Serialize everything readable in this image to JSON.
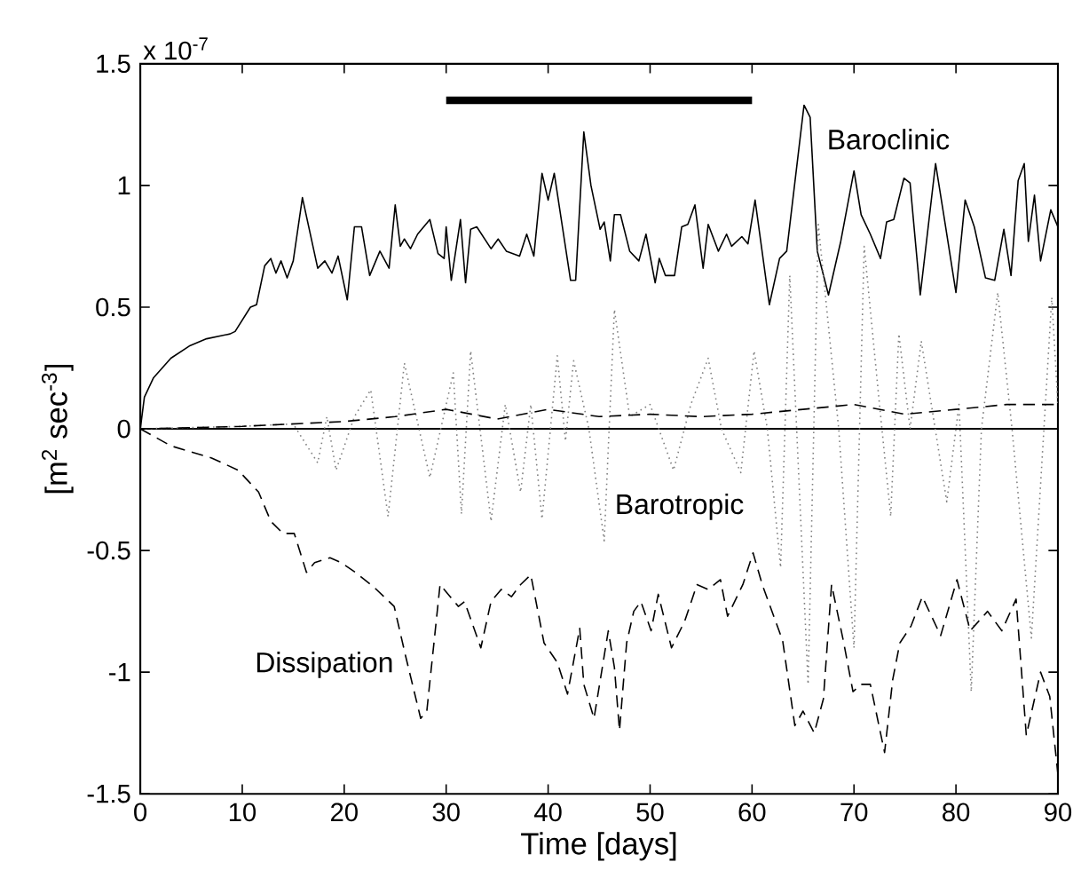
{
  "chart_data": {
    "type": "line",
    "xlabel": "Time [days]",
    "ylabel": "[m$^{2}$ sec$^{-3}$]",
    "annotations": [
      "x 10$^{-7}$"
    ],
    "xlim": [
      0,
      90
    ],
    "xticks": [
      0,
      10,
      20,
      30,
      40,
      50,
      60,
      70,
      80,
      90
    ],
    "ylim": [
      -1.5,
      1.5
    ],
    "yticks": [
      -1.5,
      -1,
      -0.5,
      0,
      0.5,
      1,
      1.5
    ],
    "ref_lines": [
      {
        "axis": "y",
        "value": 0,
        "color": "#000000"
      }
    ],
    "series": [
      {
        "name": "Baroclinic",
        "color": "#000000",
        "line_style": "solid",
        "x": [
          0,
          0.4,
          1.3,
          3,
          4.8,
          6.5,
          8.8,
          9.3,
          10.8,
          11.4,
          12.2,
          12.8,
          13.3,
          13.8,
          14.4,
          15,
          15.9,
          17.4,
          18.1,
          18.8,
          19.4,
          20.3,
          21,
          21.7,
          22.5,
          23.5,
          24.4,
          25,
          25.5,
          25.9,
          26.5,
          27.2,
          28.4,
          29.2,
          29.8,
          30,
          30.5,
          31.4,
          31.9,
          32.4,
          33,
          34.4,
          35.1,
          35.9,
          37.2,
          37.9,
          38.6,
          39.4,
          40,
          40.6,
          42.2,
          42.7,
          43.5,
          44.2,
          45.1,
          45.5,
          46.1,
          46.5,
          47.1,
          48,
          48.9,
          49.6,
          50.5,
          50.9,
          51.5,
          52.4,
          53.1,
          53.7,
          54.4,
          55.2,
          55.7,
          56.7,
          57.5,
          58,
          59,
          59.6,
          60.3,
          61.7,
          62.7,
          63.4,
          65.1,
          65.7,
          66.4,
          67.5,
          68.7,
          70,
          70.7,
          71.6,
          72.6,
          73.2,
          73.9,
          74.9,
          75.5,
          76.5,
          78,
          78.8,
          80,
          80.9,
          81.8,
          82.9,
          83.8,
          84.7,
          85.4,
          86.1,
          86.7,
          87.1,
          87.7,
          88.3,
          89.3,
          90
        ],
        "values": [
          0,
          0.13,
          0.21,
          0.29,
          0.34,
          0.37,
          0.39,
          0.4,
          0.5,
          0.51,
          0.67,
          0.7,
          0.64,
          0.69,
          0.62,
          0.69,
          0.95,
          0.66,
          0.69,
          0.64,
          0.71,
          0.53,
          0.83,
          0.83,
          0.63,
          0.73,
          0.66,
          0.92,
          0.75,
          0.78,
          0.74,
          0.8,
          0.86,
          0.72,
          0.7,
          0.83,
          0.61,
          0.86,
          0.6,
          0.82,
          0.83,
          0.74,
          0.78,
          0.73,
          0.71,
          0.8,
          0.71,
          1.05,
          0.94,
          1.05,
          0.61,
          0.61,
          1.22,
          1.0,
          0.82,
          0.85,
          0.69,
          0.88,
          0.88,
          0.73,
          0.69,
          0.8,
          0.6,
          0.7,
          0.63,
          0.63,
          0.83,
          0.84,
          0.92,
          0.66,
          0.84,
          0.73,
          0.8,
          0.75,
          0.79,
          0.76,
          0.94,
          0.51,
          0.7,
          0.73,
          1.33,
          1.28,
          0.73,
          0.55,
          0.77,
          1.06,
          0.88,
          0.8,
          0.7,
          0.85,
          0.86,
          1.03,
          1.01,
          0.55,
          1.09,
          0.88,
          0.56,
          0.94,
          0.83,
          0.62,
          0.61,
          0.82,
          0.63,
          1.02,
          1.09,
          0.77,
          0.96,
          0.69,
          0.9,
          0.83
        ]
      },
      {
        "name": "Barotropic",
        "color": "#808080",
        "line_style": "dotted",
        "x": [
          0,
          10,
          15,
          17.4,
          18.3,
          19.2,
          21,
          22.6,
          24.3,
          25.9,
          28.4,
          30.7,
          31.5,
          32.4,
          34.4,
          35.8,
          37.3,
          38.3,
          39.4,
          40.9,
          41.7,
          42.5,
          44,
          45.5,
          46.5,
          48,
          50,
          52.3,
          54,
          55.7,
          57,
          58.9,
          60.2,
          61.5,
          62.8,
          63.7,
          65.5,
          66.5,
          68.5,
          70,
          71,
          72.5,
          73.6,
          74.4,
          75.5,
          76.6,
          79.1,
          80.3,
          81.5,
          82.5,
          84.1,
          85.5,
          87.4,
          89.4,
          90
        ],
        "values": [
          0,
          0.01,
          0.02,
          -0.14,
          0.05,
          -0.17,
          0.05,
          0.16,
          -0.36,
          0.27,
          -0.2,
          0.23,
          -0.35,
          0.32,
          -0.38,
          0.1,
          -0.26,
          0.1,
          -0.37,
          0.3,
          -0.05,
          0.28,
          0,
          -0.46,
          0.49,
          0.05,
          0.1,
          -0.17,
          0.1,
          0.29,
          0,
          -0.18,
          0.32,
          0,
          -0.57,
          0.63,
          -1.05,
          0.84,
          0,
          -0.9,
          0.75,
          0.1,
          -0.36,
          0.39,
          0,
          0.36,
          -0.3,
          0.1,
          -1.08,
          0,
          0.56,
          0,
          -0.86,
          0.54,
          0.1
        ]
      },
      {
        "name": "Dissipation",
        "color": "#000000",
        "line_style": "dashed",
        "x": [
          0,
          3,
          7,
          9.6,
          11.6,
          12.8,
          14,
          15.1,
          16.3,
          17.1,
          18.6,
          19.7,
          21.1,
          22.9,
          24.9,
          26,
          27.5,
          28.1,
          29.4,
          30.4,
          31.2,
          31.8,
          33.4,
          34.4,
          35.4,
          36.4,
          37.3,
          38.3,
          39.6,
          40.9,
          41.9,
          43.1,
          43.5,
          44.5,
          45.9,
          46.5,
          47,
          47.7,
          48.4,
          49.1,
          50.1,
          50.8,
          52.1,
          53.4,
          54.6,
          55.7,
          56.9,
          57.6,
          59.1,
          60.1,
          61,
          63,
          64.2,
          65,
          66.1,
          67,
          67.8,
          69,
          69.9,
          70.7,
          71.6,
          73,
          73.8,
          74.5,
          75.6,
          76.7,
          78.5,
          80.1,
          81.4,
          83.1,
          84.5,
          85.9,
          86.9,
          88.3,
          89.2,
          90
        ],
        "values": [
          0,
          -0.07,
          -0.12,
          -0.17,
          -0.26,
          -0.38,
          -0.43,
          -0.43,
          -0.59,
          -0.55,
          -0.53,
          -0.55,
          -0.59,
          -0.65,
          -0.73,
          -0.93,
          -1.19,
          -1.16,
          -0.64,
          -0.69,
          -0.73,
          -0.71,
          -0.9,
          -0.71,
          -0.66,
          -0.69,
          -0.64,
          -0.6,
          -0.88,
          -0.96,
          -1.09,
          -0.82,
          -1.05,
          -1.19,
          -0.83,
          -0.98,
          -1.24,
          -0.88,
          -0.75,
          -0.71,
          -0.83,
          -0.68,
          -0.9,
          -0.79,
          -0.64,
          -0.66,
          -0.62,
          -0.77,
          -0.64,
          -0.51,
          -0.64,
          -0.87,
          -1.22,
          -1.16,
          -1.25,
          -1.11,
          -0.64,
          -0.88,
          -1.08,
          -1.05,
          -1.05,
          -1.33,
          -1.03,
          -0.88,
          -0.81,
          -0.69,
          -0.85,
          -0.62,
          -0.83,
          -0.75,
          -0.83,
          -0.7,
          -1.26,
          -1.0,
          -1.1,
          -1.42
        ]
      },
      {
        "color": "#000000",
        "line_style": "dashed",
        "x": [
          0,
          10,
          20,
          25,
          30,
          35,
          40,
          45,
          50,
          55,
          60,
          65,
          70,
          75,
          80,
          85,
          90
        ],
        "values": [
          0,
          0.01,
          0.03,
          0.05,
          0.08,
          0.04,
          0.08,
          0.05,
          0.06,
          0.05,
          0.06,
          0.08,
          0.1,
          0.06,
          0.08,
          0.1,
          0.1
        ]
      },
      {
        "color": "#000000",
        "line_style": "solid",
        "x": [
          30,
          60
        ],
        "values": [
          1.35,
          1.35
        ]
      }
    ]
  }
}
